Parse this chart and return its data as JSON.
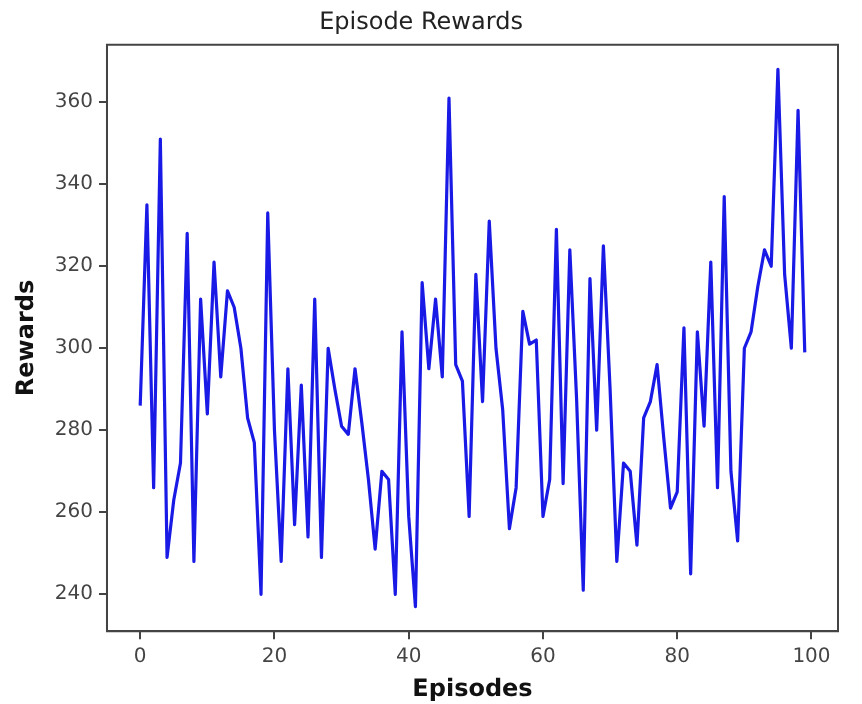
{
  "chart_data": {
    "type": "line",
    "title": "Episode Rewards",
    "xlabel": "Episodes",
    "ylabel": "Rewards",
    "x": [
      0,
      1,
      2,
      3,
      4,
      5,
      6,
      7,
      8,
      9,
      10,
      11,
      12,
      13,
      14,
      15,
      16,
      17,
      18,
      19,
      20,
      21,
      22,
      23,
      24,
      25,
      26,
      27,
      28,
      29,
      30,
      31,
      32,
      33,
      34,
      35,
      36,
      37,
      38,
      39,
      40,
      41,
      42,
      43,
      44,
      45,
      46,
      47,
      48,
      49,
      50,
      51,
      52,
      53,
      54,
      55,
      56,
      57,
      58,
      59,
      60,
      61,
      62,
      63,
      64,
      65,
      66,
      67,
      68,
      69,
      70,
      71,
      72,
      73,
      74,
      75,
      76,
      77,
      78,
      79,
      80,
      81,
      82,
      83,
      84,
      85,
      86,
      87,
      88,
      89,
      90,
      91,
      92,
      93,
      94,
      95,
      96,
      97,
      98,
      99
    ],
    "series": [
      {
        "color": "#1a1ae6",
        "values": [
          286,
          335,
          266,
          351,
          249,
          263,
          272,
          328,
          248,
          312,
          284,
          321,
          293,
          314,
          310,
          300,
          283,
          277,
          240,
          333,
          280,
          248,
          295,
          257,
          291,
          254,
          312,
          249,
          300,
          290,
          281,
          279,
          295,
          282,
          268,
          251,
          270,
          268,
          240,
          304,
          259,
          237,
          316,
          295,
          312,
          293,
          361,
          296,
          292,
          259,
          318,
          287,
          331,
          300,
          285,
          256,
          266,
          309,
          301,
          302,
          259,
          268,
          329,
          267,
          324,
          288,
          241,
          317,
          280,
          325,
          290,
          248,
          272,
          270,
          252,
          283,
          287,
          296,
          278,
          261,
          265,
          305,
          245,
          304,
          281,
          321,
          266,
          337,
          270,
          253,
          300,
          304,
          315,
          324,
          320,
          368,
          318,
          300,
          358,
          299
        ]
      }
    ],
    "xlim": [
      -4.95,
      103.95
    ],
    "ylim": [
      231,
      374
    ],
    "xticks": [
      0,
      20,
      40,
      60,
      80,
      100
    ],
    "yticks": [
      240,
      260,
      280,
      300,
      320,
      340,
      360
    ],
    "grid": false,
    "legend": false,
    "marker": "none",
    "line_style": "solid"
  }
}
